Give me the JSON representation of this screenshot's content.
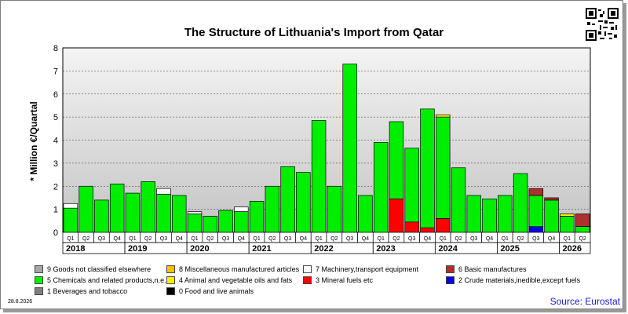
{
  "chart_data": {
    "type": "bar",
    "stacked": true,
    "title": "The Structure of Lithuania's Import from Qatar",
    "ylabel": "* Million €/Quartal",
    "ylim": [
      0,
      8
    ],
    "yticks": [
      "0",
      "1",
      "2",
      "3",
      "4",
      "5",
      "6",
      "7",
      "8"
    ],
    "grid": true,
    "legend_position": "bottom",
    "categories": [
      "Q1",
      "Q2",
      "Q3",
      "Q4",
      "Q1",
      "Q2",
      "Q3",
      "Q4",
      "Q1",
      "Q2",
      "Q3",
      "Q4",
      "Q1",
      "Q2",
      "Q3",
      "Q4",
      "Q1",
      "Q2",
      "Q3",
      "Q4",
      "Q1",
      "Q2",
      "Q3",
      "Q4",
      "Q1",
      "Q2",
      "Q3",
      "Q4",
      "Q1",
      "Q2",
      "Q3",
      "Q4",
      "Q1",
      "Q2"
    ],
    "years": [
      "2018",
      "2019",
      "2020",
      "2021",
      "2022",
      "2023",
      "2024",
      "2025",
      "2026"
    ],
    "series": [
      {
        "name": "2 Crude materials,inedible,except fuels",
        "color": "#0000ee",
        "values": [
          0,
          0,
          0,
          0,
          0,
          0,
          0,
          0,
          0,
          0,
          0,
          0,
          0,
          0,
          0,
          0,
          0,
          0,
          0,
          0,
          0,
          0,
          0,
          0,
          0,
          0,
          0,
          0,
          0,
          0,
          0.25,
          0,
          0,
          0
        ]
      },
      {
        "name": "3 Mineral fuels etc",
        "color": "#ff0000",
        "values": [
          0,
          0,
          0,
          0,
          0,
          0,
          0,
          0,
          0,
          0,
          0,
          0,
          0,
          0,
          0,
          0,
          0,
          0,
          0,
          0,
          0,
          1.45,
          0.45,
          0.2,
          0.6,
          0,
          0,
          0,
          0,
          0,
          0,
          0,
          0,
          0
        ]
      },
      {
        "name": "5 Chemicals and related products,n.e.s.",
        "color": "#00ee00",
        "values": [
          1.05,
          2.0,
          1.4,
          2.1,
          1.7,
          2.2,
          1.65,
          1.6,
          0.8,
          0.7,
          0.95,
          0.9,
          1.35,
          2.0,
          2.85,
          2.6,
          4.85,
          2.0,
          7.3,
          1.6,
          3.9,
          3.35,
          3.2,
          5.15,
          4.4,
          2.8,
          1.6,
          1.45,
          1.6,
          2.55,
          1.35,
          1.4,
          0.7,
          0.25
        ]
      },
      {
        "name": "4 Animal and vegetable oils and fats",
        "color": "#ffee00",
        "values": [
          0,
          0,
          0,
          0,
          0,
          0,
          0,
          0,
          0,
          0,
          0,
          0,
          0,
          0,
          0,
          0,
          0,
          0,
          0,
          0,
          0,
          0,
          0,
          0,
          0.1,
          0,
          0,
          0,
          0,
          0,
          0,
          0,
          0.1,
          0
        ]
      },
      {
        "name": "6 Basic manufactures",
        "color": "#b03030",
        "values": [
          0,
          0,
          0,
          0,
          0,
          0,
          0,
          0,
          0,
          0,
          0,
          0,
          0,
          0,
          0,
          0,
          0,
          0,
          0,
          0,
          0,
          0,
          0,
          0,
          0,
          0,
          0,
          0,
          0,
          0,
          0.3,
          0.1,
          0,
          0.55
        ]
      },
      {
        "name": "7 Machinery,transport equipment",
        "color": "#ffffff",
        "values": [
          0.2,
          0,
          0,
          0,
          0,
          0,
          0.25,
          0,
          0.1,
          0,
          0,
          0.2,
          0,
          0,
          0,
          0,
          0,
          0,
          0,
          0,
          0,
          0,
          0,
          0,
          0,
          0,
          0,
          0,
          0,
          0,
          0,
          0,
          0,
          0
        ]
      }
    ],
    "legend": [
      {
        "label": "9 Goods not classified elsewhere",
        "color": "#a6a6a6"
      },
      {
        "label": "8 Miscellaneous manufactured articles",
        "color": "#ffc000"
      },
      {
        "label": "7 Machinery,transport equipment",
        "color": "#ffffff"
      },
      {
        "label": "6 Basic manufactures",
        "color": "#b03030"
      },
      {
        "label": "5 Chemicals and related products,n.e.s.",
        "color": "#00ee00"
      },
      {
        "label": "4 Animal and vegetable oils and fats",
        "color": "#ffee00"
      },
      {
        "label": "3 Mineral fuels etc",
        "color": "#ff0000"
      },
      {
        "label": "2 Crude materials,inedible,except fuels",
        "color": "#0000ee"
      },
      {
        "label": "1 Beverages and tobacco",
        "color": "#808080"
      },
      {
        "label": "0 Food and live animals",
        "color": "#000000"
      }
    ]
  },
  "footer": {
    "date": "28.8.2026",
    "source": "Source: Eurostat"
  }
}
